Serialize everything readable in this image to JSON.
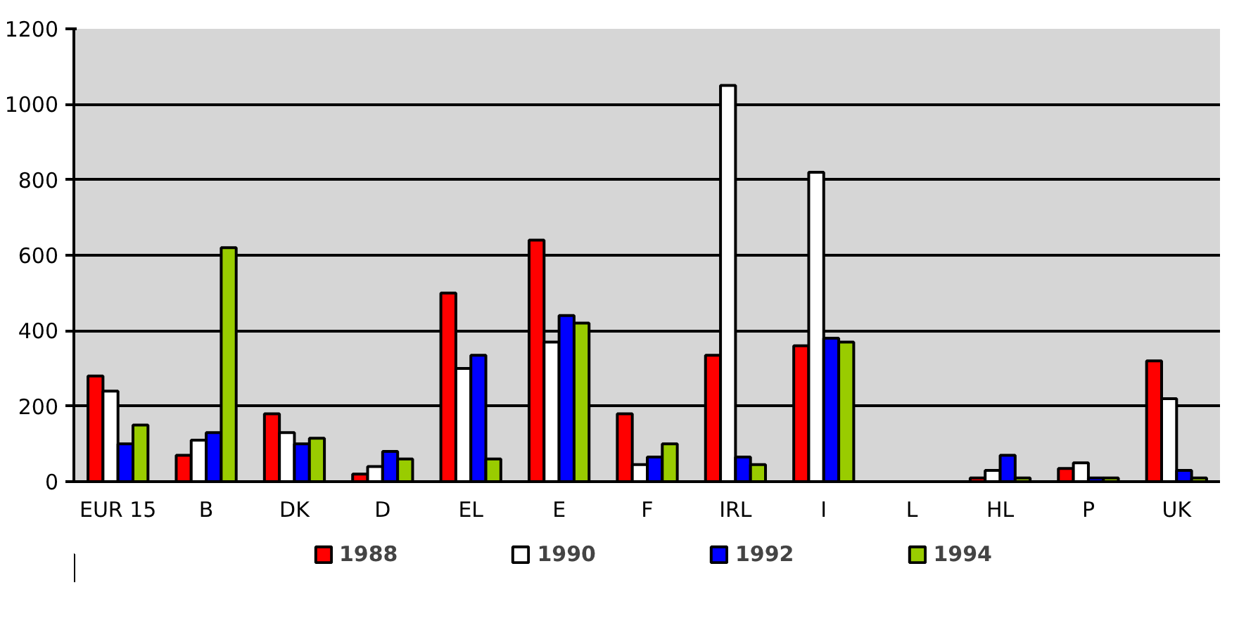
{
  "chart_data": {
    "type": "bar",
    "categories": [
      "EUR 15",
      "B",
      "DK",
      "D",
      "EL",
      "E",
      "F",
      "IRL",
      "I",
      "L",
      "HL",
      "P",
      "UK"
    ],
    "series": [
      {
        "name": "1988",
        "color": "#ff0000",
        "values": [
          280,
          70,
          180,
          20,
          500,
          640,
          180,
          335,
          360,
          null,
          10,
          35,
          320
        ]
      },
      {
        "name": "1990",
        "color": "#ffffff",
        "values": [
          240,
          110,
          130,
          40,
          300,
          370,
          45,
          1050,
          820,
          null,
          30,
          50,
          220
        ]
      },
      {
        "name": "1992",
        "color": "#0000ff",
        "values": [
          100,
          130,
          100,
          80,
          335,
          440,
          65,
          65,
          380,
          null,
          70,
          10,
          30
        ]
      },
      {
        "name": "1994",
        "color": "#99cc00",
        "values": [
          150,
          620,
          115,
          60,
          60,
          420,
          100,
          45,
          370,
          null,
          10,
          10,
          10
        ]
      }
    ],
    "ylim": [
      0,
      1200
    ],
    "yticks": [
      0,
      200,
      400,
      600,
      800,
      1000,
      1200
    ],
    "grid": "y",
    "legend": "bottom"
  }
}
